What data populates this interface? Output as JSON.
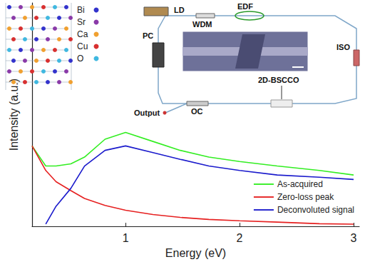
{
  "chart_data": {
    "type": "line",
    "x_label": "Energy (eV)",
    "y_label": "Intensity (a.u.)",
    "x": [
      0.18,
      0.3,
      0.39,
      0.52,
      0.64,
      0.82,
      1.0,
      1.24,
      1.48,
      1.73,
      2.0,
      2.33,
      2.7,
      3.0
    ],
    "series": [
      {
        "name": "As-acquired",
        "color": "#33ee22",
        "values": [
          0.36,
          0.27,
          0.27,
          0.28,
          0.31,
          0.39,
          0.42,
          0.38,
          0.34,
          0.31,
          0.29,
          0.27,
          0.25,
          0.23
        ]
      },
      {
        "name": "Zero-loss peak",
        "color": "#e62020",
        "values": [
          0.36,
          0.25,
          0.2,
          0.16,
          0.125,
          0.094,
          0.072,
          0.053,
          0.04,
          0.031,
          0.025,
          0.019,
          0.012,
          0.01
        ]
      },
      {
        "name": "Deconvoluted signal",
        "color": "#1a1acc",
        "values": [
          null,
          0.01,
          0.09,
          0.17,
          0.27,
          0.34,
          0.36,
          0.33,
          0.3,
          0.27,
          0.25,
          0.23,
          0.22,
          0.21
        ]
      }
    ],
    "xlim": [
      0.18,
      3.05
    ],
    "xticks": [
      1,
      2,
      3
    ],
    "ylim": [
      0,
      1
    ],
    "tick_labels": "x",
    "grid": false,
    "legend": "lower right",
    "annotations": {
      "crystal_legend": [
        "Bi",
        "Sr",
        "Ca",
        "Cu",
        "O"
      ],
      "setup": {
        "laser": "LD",
        "coupler": "WDM",
        "fiber": "EDF",
        "controller": "PC",
        "isolator": "ISO",
        "absorber": "2D-BSCCO",
        "output_coupler": "OC",
        "output": "Output"
      }
    }
  }
}
